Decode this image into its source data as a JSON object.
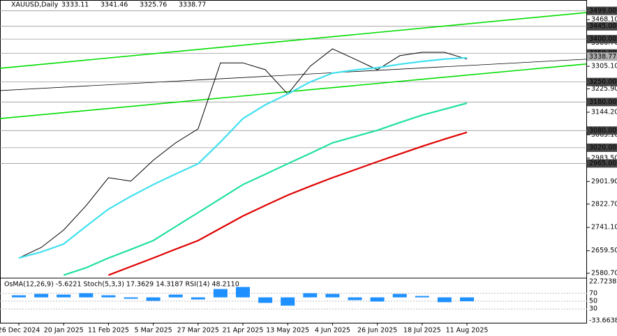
{
  "chart_data": [
    {
      "type": "line",
      "title": "XAUUSD,Daily",
      "last_bar": {
        "open": 3333.11,
        "high": 3341.46,
        "low": 3325.76,
        "close": 3338.77
      },
      "categories": [
        "26 Dec 2024",
        null,
        "20 Jan 2025",
        null,
        "11 Feb 2025",
        null,
        "5 Mar 2025",
        null,
        "27 Mar 2025",
        null,
        "21 Apr 2025",
        null,
        "13 May 2025",
        null,
        "4 Jun 2025",
        null,
        "26 Jun 2025",
        null,
        "18 Jul 2025",
        null,
        "11 Aug 2025"
      ],
      "series": [
        {
          "color": "#000000",
          "values": [
            2634,
            2671,
            2732,
            2817,
            2915,
            2903,
            2976,
            3037,
            3086,
            3317,
            3317,
            3293,
            3208,
            3305,
            3366,
            3330,
            3293,
            3342,
            3354,
            3354,
            3330
          ]
        },
        {
          "color": "#40e0f0",
          "values": [
            2634,
            2655,
            2683,
            2745,
            2805,
            2850,
            2891,
            2928,
            2964,
            3040,
            3122,
            3170,
            3208,
            3250,
            3281,
            3292,
            3300,
            3312,
            3322,
            3330,
            3335
          ]
        },
        {
          "color": "#20e0a0",
          "values": [
            null,
            null,
            2574,
            2600,
            2634,
            2664,
            2695,
            2744,
            2793,
            2842,
            2891,
            2927,
            2964,
            3000,
            3037,
            3059,
            3081,
            3108,
            3134,
            3155,
            3176
          ]
        },
        {
          "color": "#e00000",
          "values": [
            null,
            null,
            null,
            null,
            2574,
            2604,
            2634,
            2665,
            2695,
            2738,
            2781,
            2818,
            2854,
            2885,
            2915,
            2943,
            2971,
            2998,
            3025,
            3050,
            3074
          ]
        }
      ],
      "trend_lines": [
        {
          "color": "#00dd00",
          "values": [
            3298,
            3493
          ]
        },
        {
          "color": "#00dd00",
          "values": [
            3122,
            3313
          ]
        },
        {
          "color": "#000000",
          "values": [
            3220,
            3330
          ]
        }
      ],
      "levels": [
        {
          "value": 3499,
          "label": "3499.00"
        },
        {
          "value": 3445,
          "label": "3445.00"
        },
        {
          "value": 3400,
          "label": "3400.00"
        },
        {
          "value": 3350,
          "label": "3350.00"
        },
        {
          "value": 3250,
          "label": "3250.00"
        },
        {
          "value": 3180,
          "label": "3180.00"
        },
        {
          "value": 3080,
          "label": "3080.00"
        },
        {
          "value": 3020,
          "label": "3020.00"
        },
        {
          "value": 2965,
          "label": "2965.00"
        }
      ],
      "ylim": [
        2566,
        3537
      ],
      "yticks": [
        {
          "value": 3468.1,
          "label": "3468.10"
        },
        {
          "value": 3386.7,
          "label": "3386.70"
        },
        {
          "value": 3305.1,
          "label": "3305.10"
        },
        {
          "value": 3225.9,
          "label": "3225.90"
        },
        {
          "value": 3144.2,
          "label": "3144.20"
        },
        {
          "value": 3065.1,
          "label": "3065.10"
        },
        {
          "value": 2983.5,
          "label": "2983.50"
        },
        {
          "value": 2901.9,
          "label": "2901.90"
        },
        {
          "value": 2822.7,
          "label": "2822.70"
        },
        {
          "value": 2741.1,
          "label": "2741.10"
        },
        {
          "value": 2659.5,
          "label": "2659.50"
        },
        {
          "value": 2580.7,
          "label": "2580.70"
        }
      ]
    },
    {
      "type": "bar",
      "title": "OsMA(12,26,9) -5.6221 Stoch(5,3,3) 17.3629 14.3187 RSI(14) 48.2110",
      "color": "#1e90ff",
      "values": [
        3,
        5,
        4,
        6,
        3,
        -2,
        -5,
        4,
        -3,
        12,
        15,
        -8,
        -12,
        6,
        5,
        -4,
        -6,
        5,
        2,
        -7,
        -5.6221
      ],
      "ylim": [
        -33.6638,
        22.7238
      ],
      "yticks": [
        22.7238,
        -33.6638
      ],
      "y2lim": [
        0,
        100
      ],
      "y2ticks": [
        70,
        50,
        30
      ]
    }
  ]
}
